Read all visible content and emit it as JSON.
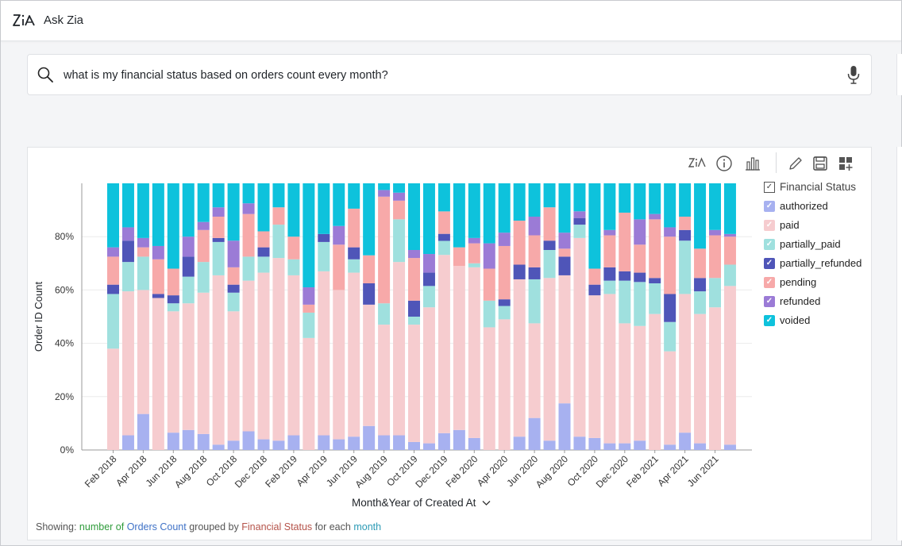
{
  "app": {
    "title": "Ask Zia"
  },
  "search": {
    "query": "what is my financial status based on orders count every month?"
  },
  "toolbar": [
    "zia-icon",
    "info-icon",
    "chart-type-icon",
    "edit-icon",
    "save-icon",
    "add-dashboard-icon"
  ],
  "legend": {
    "title": "Financial Status",
    "items": [
      {
        "label": "authorized",
        "color": "#a7b1f0"
      },
      {
        "label": "paid",
        "color": "#f6cccf"
      },
      {
        "label": "partially_paid",
        "color": "#9fe0de"
      },
      {
        "label": "partially_refunded",
        "color": "#4f55b8"
      },
      {
        "label": "pending",
        "color": "#f7a9a9"
      },
      {
        "label": "refunded",
        "color": "#9b7bd6"
      },
      {
        "label": "voided",
        "color": "#0ec2dc"
      }
    ]
  },
  "footer": {
    "prefix": "Showing:",
    "measure": "number of",
    "measure_color": "#2e9b3a",
    "field": "Orders Count",
    "field_color": "#3f72c7",
    "grouped": "grouped by",
    "group_field": "Financial Status",
    "group_color": "#b5534a",
    "for_each": "for each",
    "period": "month",
    "period_color": "#2b9ab5"
  },
  "chart_data": {
    "type": "bar",
    "stacked": true,
    "normalized_percent": true,
    "ylabel": "Order ID Count",
    "xlabel": "Month&Year of Created At",
    "ylim": [
      0,
      100
    ],
    "yticks": [
      "0%",
      "20%",
      "40%",
      "60%",
      "80%"
    ],
    "xtick_labels": [
      "Feb 2018",
      "Apr 2018",
      "Jun 2018",
      "Aug 2018",
      "Oct 2018",
      "Dec 2018",
      "Feb 2019",
      "Apr 2019",
      "Jun 2019",
      "Aug 2019",
      "Oct 2019",
      "Dec 2019",
      "Feb 2020",
      "Apr 2020",
      "Jun 2020",
      "Aug 2020",
      "Oct 2020",
      "Dec 2020",
      "Feb 2021",
      "Apr 2021",
      "Jun 2021"
    ],
    "categories": [
      "Feb 2018",
      "Mar 2018",
      "Apr 2018",
      "May 2018",
      "Jun 2018",
      "Jul 2018",
      "Aug 2018",
      "Sep 2018",
      "Oct 2018",
      "Nov 2018",
      "Dec 2018",
      "Jan 2019",
      "Feb 2019",
      "Mar 2019",
      "Apr 2019",
      "May 2019",
      "Jun 2019",
      "Jul 2019",
      "Aug 2019",
      "Sep 2019",
      "Oct 2019",
      "Nov 2019",
      "Dec 2019",
      "Jan 2020",
      "Feb 2020",
      "Mar 2020",
      "Apr 2020",
      "May 2020",
      "Jun 2020",
      "Jul 2020",
      "Aug 2020",
      "Sep 2020",
      "Oct 2020",
      "Nov 2020",
      "Dec 2020",
      "Jan 2021",
      "Feb 2021",
      "Mar 2021",
      "Apr 2021",
      "May 2021",
      "Jun 2021",
      "Jul 2021"
    ],
    "grid": true,
    "legend_position": "right",
    "series": [
      {
        "name": "authorized",
        "values": [
          0,
          5.5,
          13.5,
          0,
          6.5,
          7.5,
          6,
          2,
          3.5,
          7,
          4,
          3.5,
          5.5,
          0,
          5.5,
          4,
          5,
          9,
          5.5,
          5.5,
          3,
          2.5,
          6,
          7.5,
          4.5,
          0,
          0,
          5,
          12,
          3.5,
          17.5,
          5,
          4.5,
          2.5,
          2.5,
          3.5,
          0,
          2,
          6.5,
          2.5,
          0,
          2
        ]
      },
      {
        "name": "paid",
        "values": [
          38,
          54,
          46.5,
          57,
          45.5,
          47.5,
          53,
          63.5,
          48.5,
          56.5,
          62.5,
          68.5,
          60,
          42,
          61.5,
          56,
          61.5,
          45.5,
          41.5,
          65,
          44,
          51,
          63.5,
          61.5,
          64,
          46,
          49,
          59,
          35.5,
          61,
          48,
          74.5,
          53.5,
          56,
          45,
          43,
          51,
          35,
          52,
          48.5,
          53.5,
          59.5
        ]
      },
      {
        "name": "partially_paid",
        "values": [
          20.5,
          11,
          12.5,
          0,
          3,
          10,
          11.5,
          12.5,
          7,
          9,
          6,
          12.5,
          6,
          9.5,
          11,
          0,
          5,
          0,
          8,
          16,
          3,
          8,
          5,
          0,
          1.5,
          10,
          5,
          0,
          16.5,
          10.5,
          0,
          5,
          0,
          5,
          16,
          16.5,
          11.5,
          11,
          20,
          8.5,
          11,
          8
        ]
      },
      {
        "name": "partially_refunded",
        "values": [
          3.5,
          8,
          0,
          1.5,
          3,
          7.5,
          0,
          1.5,
          3,
          0,
          3.5,
          0,
          0,
          0,
          3,
          0,
          4.5,
          8,
          0,
          0,
          6,
          5,
          2.5,
          0,
          0,
          0,
          2.5,
          5.5,
          4.5,
          3.5,
          7,
          2.5,
          4,
          5,
          3.5,
          3.5,
          2,
          10.5,
          4,
          5,
          0,
          0
        ]
      },
      {
        "name": "pending",
        "values": [
          10.5,
          0,
          3.5,
          13,
          10,
          0,
          12,
          8,
          6.5,
          16,
          6,
          6.5,
          8.5,
          3,
          0,
          17,
          14.5,
          10.5,
          40,
          7,
          16,
          0,
          8,
          7,
          7.5,
          12,
          20,
          16.5,
          12,
          12.5,
          3,
          0,
          6,
          12,
          22,
          10.5,
          22,
          21.5,
          5,
          11,
          16,
          10.5
        ]
      },
      {
        "name": "refunded",
        "values": [
          3.5,
          5,
          3.5,
          5,
          0,
          7.5,
          3,
          3.5,
          10,
          4,
          0,
          0,
          0,
          6.5,
          0,
          7,
          0,
          0,
          2.5,
          3,
          3,
          7,
          0,
          0,
          2,
          9.5,
          5,
          0,
          7,
          0,
          6,
          2.5,
          0,
          2,
          0,
          9.5,
          2,
          3.5,
          0,
          0,
          2,
          1
        ]
      },
      {
        "name": "voided",
        "values": [
          24,
          16.5,
          20.5,
          23.5,
          32,
          20,
          14.5,
          9,
          21.5,
          7.5,
          18,
          9,
          20,
          39,
          19,
          16,
          9.5,
          27,
          2.5,
          3.5,
          25,
          26.5,
          10,
          24,
          20.5,
          22.5,
          18.5,
          14,
          12.5,
          9,
          18.5,
          10.5,
          32,
          17.5,
          11,
          13.5,
          11.5,
          16.5,
          12.5,
          24.5,
          17.5,
          19
        ]
      }
    ]
  }
}
